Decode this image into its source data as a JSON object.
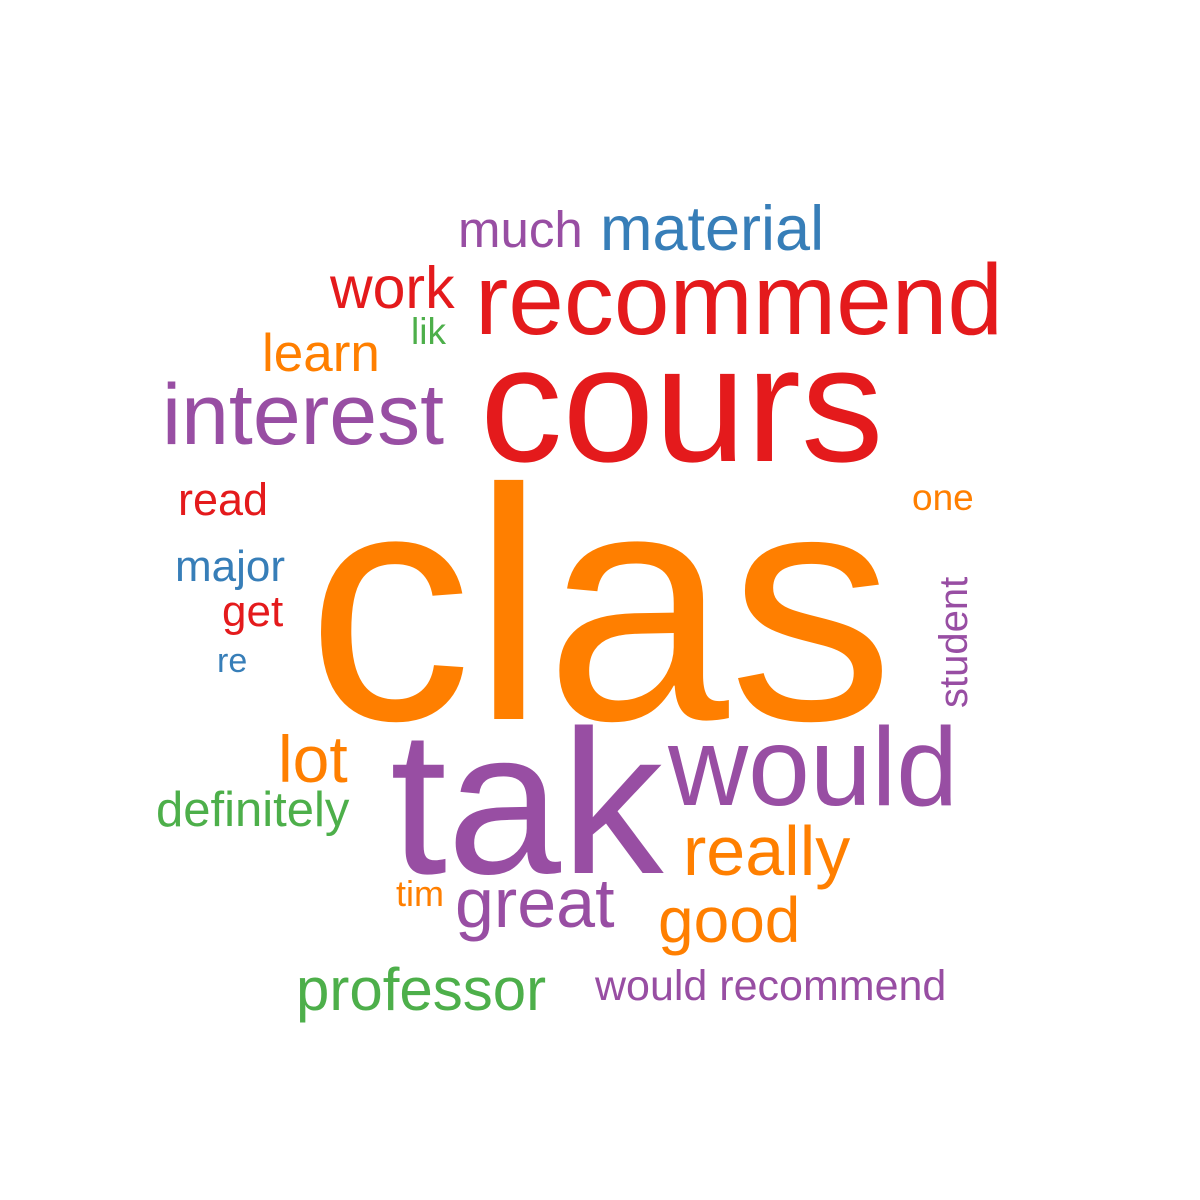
{
  "word_cloud": {
    "palette": {
      "red": "#e41a1c",
      "orange": "#ff7f00",
      "purple": "#984ea3",
      "blue": "#377eb8",
      "green": "#4daf4a"
    },
    "words": [
      {
        "text": "clas",
        "color": "#ff7f00",
        "orientation": "horizontal"
      },
      {
        "text": "tak",
        "color": "#984ea3",
        "orientation": "horizontal"
      },
      {
        "text": "cours",
        "color": "#e41a1c",
        "orientation": "horizontal"
      },
      {
        "text": "recommend",
        "color": "#e41a1c",
        "orientation": "horizontal"
      },
      {
        "text": "would",
        "color": "#984ea3",
        "orientation": "horizontal"
      },
      {
        "text": "interest",
        "color": "#984ea3",
        "orientation": "horizontal"
      },
      {
        "text": "really",
        "color": "#ff7f00",
        "orientation": "horizontal"
      },
      {
        "text": "great",
        "color": "#984ea3",
        "orientation": "horizontal"
      },
      {
        "text": "good",
        "color": "#ff7f00",
        "orientation": "horizontal"
      },
      {
        "text": "professor",
        "color": "#4daf4a",
        "orientation": "horizontal"
      },
      {
        "text": "lot",
        "color": "#ff7f00",
        "orientation": "horizontal"
      },
      {
        "text": "material",
        "color": "#377eb8",
        "orientation": "horizontal"
      },
      {
        "text": "work",
        "color": "#e41a1c",
        "orientation": "horizontal"
      },
      {
        "text": "learn",
        "color": "#ff7f00",
        "orientation": "horizontal"
      },
      {
        "text": "much",
        "color": "#984ea3",
        "orientation": "horizontal"
      },
      {
        "text": "definitely",
        "color": "#4daf4a",
        "orientation": "horizontal"
      },
      {
        "text": "would recommend",
        "color": "#984ea3",
        "orientation": "horizontal"
      },
      {
        "text": "read",
        "color": "#e41a1c",
        "orientation": "horizontal"
      },
      {
        "text": "major",
        "color": "#377eb8",
        "orientation": "horizontal"
      },
      {
        "text": "get",
        "color": "#e41a1c",
        "orientation": "horizontal"
      },
      {
        "text": "student",
        "color": "#984ea3",
        "orientation": "vertical"
      },
      {
        "text": "one",
        "color": "#ff7f00",
        "orientation": "horizontal"
      },
      {
        "text": "lik",
        "color": "#4daf4a",
        "orientation": "horizontal"
      },
      {
        "text": "tim",
        "color": "#ff7f00",
        "orientation": "horizontal"
      },
      {
        "text": "re",
        "color": "#377eb8",
        "orientation": "horizontal"
      }
    ]
  }
}
